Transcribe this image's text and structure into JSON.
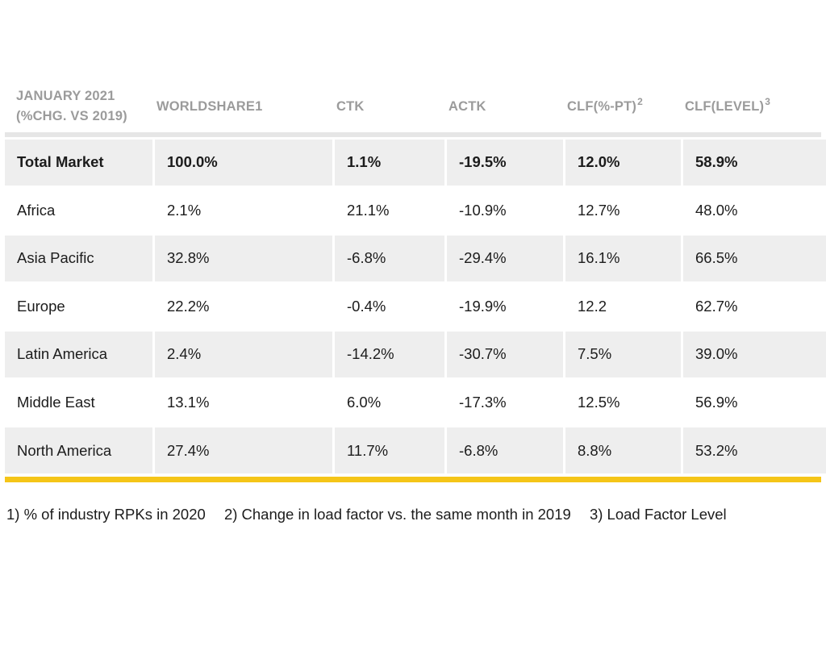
{
  "table": {
    "headers": [
      {
        "lines": [
          "JANUARY 2021",
          "(%CHG. VS 2019)"
        ],
        "sup": ""
      },
      {
        "lines": [
          "WORLDSHARE1"
        ],
        "sup": ""
      },
      {
        "lines": [
          "CTK"
        ],
        "sup": ""
      },
      {
        "lines": [
          "ACTK"
        ],
        "sup": ""
      },
      {
        "lines": [
          "CLF(%-PT)"
        ],
        "sup": "2"
      },
      {
        "lines": [
          "CLF(LEVEL)"
        ],
        "sup": "3"
      }
    ],
    "rows": [
      {
        "region": "Total Market",
        "worldshare": "100.0%",
        "ctk": "1.1%",
        "actk": "-19.5%",
        "clf_pt": "12.0%",
        "clf_level": "58.9%"
      },
      {
        "region": "Africa",
        "worldshare": "2.1%",
        "ctk": "21.1%",
        "actk": "-10.9%",
        "clf_pt": "12.7%",
        "clf_level": "48.0%"
      },
      {
        "region": "Asia Pacific",
        "worldshare": "32.8%",
        "ctk": "-6.8%",
        "actk": "-29.4%",
        "clf_pt": "16.1%",
        "clf_level": "66.5%"
      },
      {
        "region": "Europe",
        "worldshare": "22.2%",
        "ctk": "-0.4%",
        "actk": "-19.9%",
        "clf_pt": "12.2",
        "clf_level": "62.7%"
      },
      {
        "region": "Latin America",
        "worldshare": "2.4%",
        "ctk": "-14.2%",
        "actk": "-30.7%",
        "clf_pt": "7.5%",
        "clf_level": "39.0%"
      },
      {
        "region": "Middle East",
        "worldshare": "13.1%",
        "ctk": "6.0%",
        "actk": "-17.3%",
        "clf_pt": "12.5%",
        "clf_level": "56.9%"
      },
      {
        "region": "North America",
        "worldshare": "27.4%",
        "ctk": "11.7%",
        "actk": "-6.8%",
        "clf_pt": "8.8%",
        "clf_level": "53.2%"
      }
    ]
  },
  "footnotes": [
    "1) % of industry RPKs in 2020",
    "2) Change in load factor vs. the same month in 2019",
    "3) Load Factor Level"
  ],
  "colors": {
    "accent_bar": "#f5c518",
    "header_text": "#9b9b9b",
    "shaded_row": "#eeeeee"
  }
}
